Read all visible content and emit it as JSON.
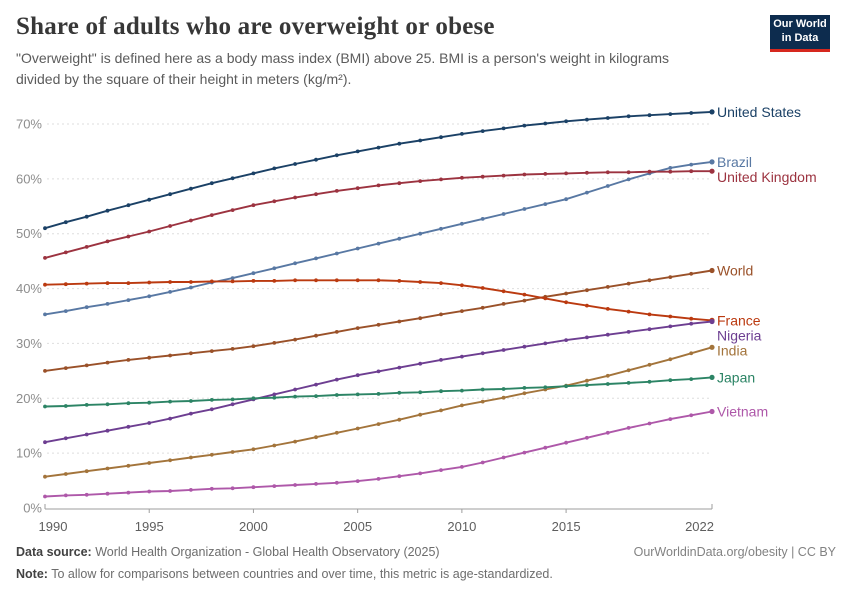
{
  "header": {
    "title": "Share of adults who are overweight or obese",
    "subtitle": "\"Overweight\" is defined here as a body mass index (BMI) above 25. BMI is a person's weight in kilograms divided by the square of their height in meters (kg/m²).",
    "logo": {
      "line1": "Our World",
      "line2": "in Data",
      "bg_color": "#0d2c4e",
      "accent_color": "#d6281e"
    }
  },
  "footer": {
    "datasource_label": "Data source:",
    "datasource_text": " World Health Organization - Global Health Observatory (2025)",
    "note_label": "Note:",
    "note_text": " To allow for comparisons between countries and over time, this metric is age-standardized.",
    "link_text": "OurWorldinData.org/obesity | CC BY"
  },
  "chart_data": {
    "type": "line",
    "title": "Share of adults who are overweight or obese",
    "xlabel": "",
    "ylabel": "",
    "xlim": [
      1990,
      2022
    ],
    "ylim": [
      0,
      73
    ],
    "grid": "horizontal-dashed",
    "legend_position": "right-end-of-line-labels",
    "xticks": [
      1990,
      1995,
      2000,
      2005,
      2010,
      2015,
      2022
    ],
    "yticks": [
      0,
      10,
      20,
      30,
      40,
      50,
      60,
      70
    ],
    "ytick_suffix": "%",
    "x": [
      1990,
      1991,
      1992,
      1993,
      1994,
      1995,
      1996,
      1997,
      1998,
      1999,
      2000,
      2001,
      2002,
      2003,
      2004,
      2005,
      2006,
      2007,
      2008,
      2009,
      2010,
      2011,
      2012,
      2013,
      2014,
      2015,
      2016,
      2017,
      2018,
      2019,
      2020,
      2021,
      2022
    ],
    "series": [
      {
        "name": "United States",
        "color": "#1b4166",
        "values": [
          51.0,
          52.1,
          53.1,
          54.2,
          55.2,
          56.2,
          57.2,
          58.2,
          59.2,
          60.1,
          61.0,
          61.9,
          62.7,
          63.5,
          64.3,
          65.0,
          65.7,
          66.4,
          67.0,
          67.6,
          68.2,
          68.7,
          69.2,
          69.7,
          70.1,
          70.5,
          70.8,
          71.1,
          71.4,
          71.6,
          71.8,
          72.0,
          72.2
        ]
      },
      {
        "name": "Brazil",
        "color": "#5878a3",
        "values": [
          35.3,
          35.9,
          36.6,
          37.2,
          37.9,
          38.6,
          39.4,
          40.2,
          41.1,
          41.9,
          42.8,
          43.7,
          44.6,
          45.5,
          46.4,
          47.3,
          48.2,
          49.1,
          50.0,
          50.9,
          51.8,
          52.7,
          53.6,
          54.5,
          55.4,
          56.3,
          57.5,
          58.7,
          59.9,
          61.0,
          62.0,
          62.6,
          63.1
        ]
      },
      {
        "name": "United Kingdom",
        "color": "#9c3340",
        "values": [
          45.6,
          46.6,
          47.6,
          48.6,
          49.5,
          50.4,
          51.4,
          52.4,
          53.4,
          54.3,
          55.2,
          55.9,
          56.6,
          57.2,
          57.8,
          58.3,
          58.8,
          59.2,
          59.6,
          59.9,
          60.2,
          60.4,
          60.6,
          60.8,
          60.9,
          61.0,
          61.1,
          61.2,
          61.2,
          61.3,
          61.3,
          61.4,
          61.4
        ]
      },
      {
        "name": "World",
        "color": "#9a5129",
        "values": [
          25.0,
          25.5,
          26.0,
          26.5,
          27.0,
          27.4,
          27.8,
          28.2,
          28.6,
          29.0,
          29.5,
          30.1,
          30.7,
          31.4,
          32.1,
          32.8,
          33.4,
          34.0,
          34.6,
          35.3,
          35.9,
          36.5,
          37.2,
          37.8,
          38.5,
          39.1,
          39.7,
          40.3,
          40.9,
          41.5,
          42.1,
          42.7,
          43.3
        ]
      },
      {
        "name": "France",
        "color": "#bb3a10",
        "values": [
          40.7,
          40.8,
          40.9,
          41.0,
          41.0,
          41.1,
          41.2,
          41.2,
          41.3,
          41.3,
          41.4,
          41.4,
          41.5,
          41.5,
          41.5,
          41.5,
          41.5,
          41.4,
          41.2,
          41.0,
          40.6,
          40.1,
          39.5,
          38.9,
          38.2,
          37.5,
          36.9,
          36.3,
          35.8,
          35.3,
          34.9,
          34.5,
          34.2
        ]
      },
      {
        "name": "Nigeria",
        "color": "#6d3e91",
        "values": [
          12.0,
          12.7,
          13.4,
          14.1,
          14.8,
          15.5,
          16.3,
          17.2,
          18.0,
          18.9,
          19.8,
          20.7,
          21.6,
          22.5,
          23.4,
          24.2,
          24.9,
          25.6,
          26.3,
          27.0,
          27.6,
          28.2,
          28.8,
          29.4,
          30.0,
          30.6,
          31.1,
          31.6,
          32.1,
          32.6,
          33.1,
          33.6,
          34.0
        ]
      },
      {
        "name": "India",
        "color": "#a3743b",
        "values": [
          5.7,
          6.2,
          6.7,
          7.2,
          7.7,
          8.2,
          8.7,
          9.2,
          9.7,
          10.2,
          10.7,
          11.4,
          12.1,
          12.9,
          13.7,
          14.5,
          15.3,
          16.1,
          17.0,
          17.8,
          18.7,
          19.4,
          20.1,
          20.9,
          21.6,
          22.3,
          23.2,
          24.1,
          25.1,
          26.1,
          27.1,
          28.2,
          29.3
        ]
      },
      {
        "name": "Japan",
        "color": "#2c8465",
        "values": [
          18.5,
          18.6,
          18.8,
          18.9,
          19.1,
          19.2,
          19.4,
          19.5,
          19.7,
          19.8,
          20.0,
          20.1,
          20.3,
          20.4,
          20.6,
          20.7,
          20.8,
          21.0,
          21.1,
          21.3,
          21.4,
          21.6,
          21.7,
          21.9,
          22.0,
          22.2,
          22.4,
          22.6,
          22.8,
          23.0,
          23.3,
          23.5,
          23.8
        ]
      },
      {
        "name": "Vietnam",
        "color": "#ae58a9",
        "values": [
          2.1,
          2.3,
          2.4,
          2.6,
          2.8,
          3.0,
          3.1,
          3.3,
          3.5,
          3.6,
          3.8,
          4.0,
          4.2,
          4.4,
          4.6,
          4.9,
          5.3,
          5.8,
          6.3,
          6.9,
          7.5,
          8.3,
          9.2,
          10.1,
          11.0,
          11.9,
          12.8,
          13.7,
          14.6,
          15.4,
          16.2,
          16.9,
          17.6
        ]
      }
    ]
  }
}
